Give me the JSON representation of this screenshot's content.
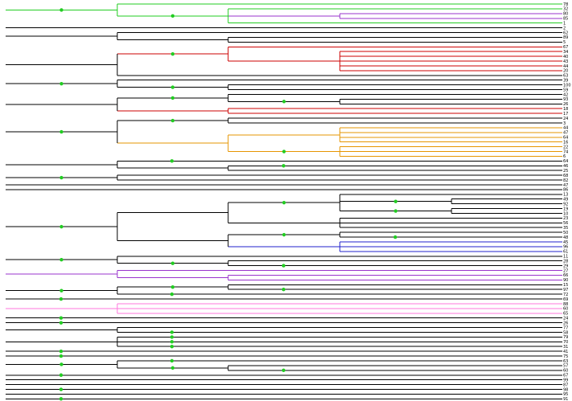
{
  "colors": {
    "default": "#000000",
    "green": "#22cc22",
    "red": "#cc0000",
    "orange": "#e69500",
    "blue": "#2222cc",
    "purple": "#9933cc",
    "pink": "#ff77dd",
    "node": "#22cc22"
  },
  "tree": {
    "leaves": [
      "78",
      "32",
      "80",
      "85",
      "1",
      "2",
      "62",
      "89",
      "5",
      "67",
      "34",
      "40",
      "43",
      "44",
      "20",
      "63",
      "39",
      "100",
      "59",
      "42",
      "93",
      "26",
      "18",
      "17",
      "24",
      "3",
      "44",
      "47",
      "64",
      "16",
      "22",
      "74",
      "6",
      "64",
      "46",
      "25",
      "68",
      "82",
      "47",
      "86",
      "13",
      "49",
      "92",
      "19",
      "10",
      "23",
      "56",
      "35",
      "50",
      "48",
      "45",
      "96",
      "61",
      "11",
      "28",
      "29",
      "27",
      "66",
      "90",
      "15",
      "97",
      "72",
      "69",
      "88",
      "60",
      "65",
      "24",
      "26",
      "77",
      "58",
      "79",
      "70",
      "31",
      "41",
      "75",
      "63",
      "57",
      "60",
      "67",
      "99",
      "87",
      "98",
      "95",
      "91"
    ],
    "root": {
      "k": [
        {
          "c": "green",
          "b": true,
          "k": [
            {
              "l": 0
            },
            {
              "b": true,
              "k": [
                {
                  "l": 1
                },
                {
                  "c": "purple",
                  "k": [
                    {
                      "l": 2
                    },
                    {
                      "l": 3
                    }
                  ]
                },
                {
                  "l": 4
                }
              ]
            }
          ]
        },
        {
          "l": 5
        },
        {
          "k": [
            {
              "l": 6
            },
            {
              "k": [
                {
                  "l": 7
                },
                {
                  "l": 8
                }
              ]
            }
          ]
        },
        {
          "k": [
            {
              "c": "red",
              "b": true,
              "k": [
                {
                  "l": 9
                },
                {
                  "k": [
                    {
                      "l": 10
                    },
                    {
                      "l": 11
                    },
                    {
                      "l": 12
                    },
                    {
                      "l": 13
                    },
                    {
                      "l": 14
                    }
                  ]
                }
              ]
            },
            {
              "l": 15
            }
          ]
        },
        {
          "b": true,
          "k": [
            {
              "l": 16
            },
            {
              "b": true,
              "k": [
                {
                  "l": 17
                },
                {
                  "l": 18
                }
              ]
            }
          ]
        },
        {
          "k": [
            {
              "b": true,
              "k": [
                {
                  "l": 19
                },
                {
                  "b": true,
                  "k": [
                    {
                      "l": 20
                    },
                    {
                      "l": 21
                    }
                  ]
                }
              ]
            },
            {
              "c": "red",
              "k": [
                {
                  "l": 22
                },
                {
                  "l": 23
                }
              ]
            }
          ]
        },
        {
          "b": true,
          "k": [
            {
              "b": true,
              "k": [
                {
                  "l": 24
                },
                {
                  "l": 25
                }
              ]
            },
            {
              "c": "orange",
              "k": [
                {
                  "k": [
                    {
                      "l": 26
                    },
                    {
                      "l": 27
                    },
                    {
                      "l": 28
                    },
                    {
                      "l": 29
                    }
                  ]
                },
                {
                  "b": true,
                  "k": [
                    {
                      "l": 30
                    },
                    {
                      "l": 31
                    },
                    {
                      "l": 32
                    }
                  ]
                }
              ]
            }
          ]
        },
        {
          "k": [
            {
              "b": true,
              "l": 33
            },
            {
              "k": [
                {
                  "b": true,
                  "l": 34
                },
                {
                  "l": 35
                }
              ]
            }
          ]
        },
        {
          "b": true,
          "k": [
            {
              "l": 36
            },
            {
              "l": 37
            }
          ]
        },
        {
          "l": 38
        },
        {
          "l": 39
        },
        {
          "b": true,
          "k": [
            {
              "k": [
                {
                  "b": true,
                  "k": [
                    {
                      "l": 40
                    },
                    {
                      "b": true,
                      "k": [
                        {
                          "l": 41
                        },
                        {
                          "l": 42
                        }
                      ]
                    },
                    {
                      "b": true,
                      "k": [
                        {
                          "l": 43
                        },
                        {
                          "l": 44
                        }
                      ]
                    }
                  ]
                },
                {
                  "k": [
                    {
                      "l": 45
                    },
                    {
                      "l": 46
                    },
                    {
                      "l": 47
                    }
                  ]
                }
              ]
            },
            {
              "k": [
                {
                  "b": true,
                  "k": [
                    {
                      "l": 48
                    },
                    {
                      "b": true,
                      "l": 49
                    }
                  ]
                },
                {
                  "c": "blue",
                  "k": [
                    {
                      "l": 50
                    },
                    {
                      "l": 51
                    },
                    {
                      "l": 52
                    }
                  ]
                }
              ]
            }
          ]
        },
        {
          "b": true,
          "k": [
            {
              "l": 53
            },
            {
              "b": true,
              "k": [
                {
                  "l": 54
                },
                {
                  "b": true,
                  "l": 55
                }
              ]
            }
          ]
        },
        {
          "c": "purple",
          "k": [
            {
              "l": 56
            },
            {
              "k": [
                {
                  "l": 57
                },
                {
                  "l": 58
                }
              ]
            }
          ]
        },
        {
          "b": true,
          "k": [
            {
              "b": true,
              "k": [
                {
                  "l": 59
                },
                {
                  "b": true,
                  "l": 60
                }
              ]
            },
            {
              "b": true,
              "l": 61
            }
          ]
        },
        {
          "b": true,
          "l": 62
        },
        {
          "c": "pink",
          "k": [
            {
              "l": 63
            },
            {
              "l": 64
            },
            {
              "l": 65
            }
          ]
        },
        {
          "b": true,
          "l": 66
        },
        {
          "b": true,
          "l": 67
        },
        {
          "k": [
            {
              "l": 68
            },
            {
              "b": true,
              "l": 69
            }
          ]
        },
        {
          "k": [
            {
              "b": true,
              "l": 70
            },
            {
              "b": true,
              "l": 71
            },
            {
              "b": true,
              "l": 72
            }
          ]
        },
        {
          "b": true,
          "l": 73
        },
        {
          "b": true,
          "l": 74
        },
        {
          "b": true,
          "k": [
            {
              "b": true,
              "l": 75
            },
            {
              "b": true,
              "k": [
                {
                  "l": 76
                },
                {
                  "b": true,
                  "l": 77
                }
              ]
            }
          ]
        },
        {
          "b": true,
          "l": 78
        },
        {
          "l": 79
        },
        {
          "l": 80
        },
        {
          "b": true,
          "l": 81
        },
        {
          "l": 82
        },
        {
          "b": true,
          "l": 83
        }
      ]
    }
  }
}
